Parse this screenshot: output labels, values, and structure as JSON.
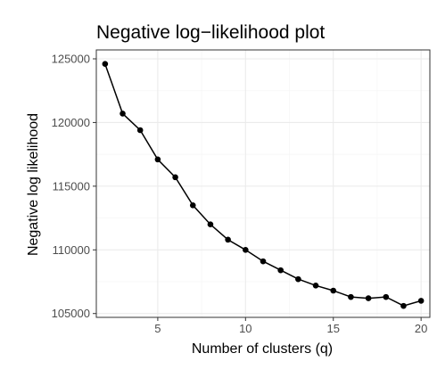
{
  "chart_data": {
    "type": "line",
    "title": "Negative log−likelihood plot",
    "xlabel": "Number of clusters (q)",
    "ylabel": "Negative log likelihood",
    "xlim": [
      1.5,
      20.5
    ],
    "ylim": [
      104700,
      125700
    ],
    "x_ticks": [
      5,
      10,
      15,
      20
    ],
    "y_ticks": [
      105000,
      110000,
      115000,
      120000,
      125000
    ],
    "grid": true,
    "legend": "none",
    "series": [
      {
        "x": [
          2,
          3,
          4,
          5,
          6,
          7,
          8,
          9,
          10,
          11,
          12,
          13,
          14,
          15,
          16,
          17,
          18,
          19,
          20
        ],
        "values": [
          124600,
          120700,
          119400,
          117100,
          115700,
          113500,
          112000,
          110800,
          110000,
          109100,
          108400,
          107700,
          107200,
          106800,
          106300,
          106200,
          106300,
          105600,
          106000
        ]
      }
    ],
    "colors": {
      "line": "#000000",
      "point": "#000000",
      "grid_major": "#ebebeb",
      "grid_minor": "#f5f5f5",
      "panel_border": "#333333",
      "tick_text": "#4d4d4d"
    }
  }
}
